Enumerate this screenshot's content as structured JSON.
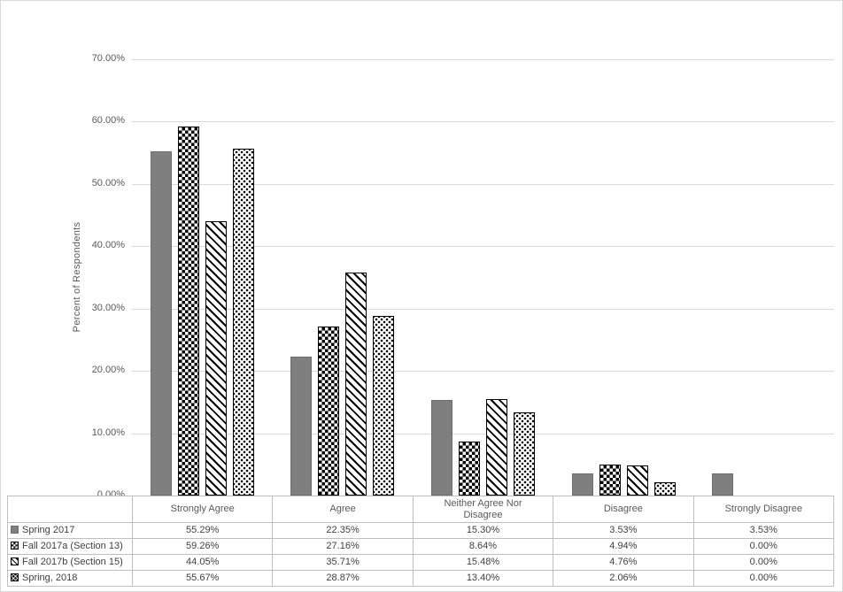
{
  "chart_data": {
    "type": "bar",
    "title": "",
    "xlabel": "",
    "ylabel": "Percent of Respondents",
    "ylim": [
      0,
      70
    ],
    "grid": true,
    "legend_position": "data-table-left",
    "ytick_labels": [
      "70.00%",
      "60.00%",
      "50.00%",
      "40.00%",
      "30.00%",
      "20.00%",
      "10.00%",
      "0.00%"
    ],
    "categories": [
      "Strongly Agree",
      "Agree",
      "Neither Agree Nor Disagree",
      "Disagree",
      "Strongly Disagree"
    ],
    "series": [
      {
        "name": "Spring 2017",
        "pattern": "solid",
        "values": [
          55.29,
          22.35,
          15.3,
          3.53,
          3.53
        ],
        "display": [
          "55.29%",
          "22.35%",
          "15.30%",
          "3.53%",
          "3.53%"
        ]
      },
      {
        "name": "Fall 2017a (Section 13)",
        "pattern": "checker",
        "values": [
          59.26,
          27.16,
          8.64,
          4.94,
          0.0
        ],
        "display": [
          "59.26%",
          "27.16%",
          "8.64%",
          "4.94%",
          "0.00%"
        ]
      },
      {
        "name": "Fall 2017b (Section 15)",
        "pattern": "diagonal",
        "values": [
          44.05,
          35.71,
          15.48,
          4.76,
          0.0
        ],
        "display": [
          "44.05%",
          "35.71%",
          "15.48%",
          "4.76%",
          "0.00%"
        ]
      },
      {
        "name": "Spring, 2018",
        "pattern": "dots",
        "values": [
          55.67,
          28.87,
          13.4,
          2.06,
          0.0
        ],
        "display": [
          "55.67%",
          "28.87%",
          "13.40%",
          "2.06%",
          "0.00%"
        ]
      }
    ],
    "colors": {
      "solid_bar": "#7f7f7f",
      "pattern_fg": "#000000",
      "pattern_bg": "#ffffff",
      "gridline": "#d9d9d9",
      "axis_line": "#bfbfbf",
      "text": "#595959"
    }
  }
}
